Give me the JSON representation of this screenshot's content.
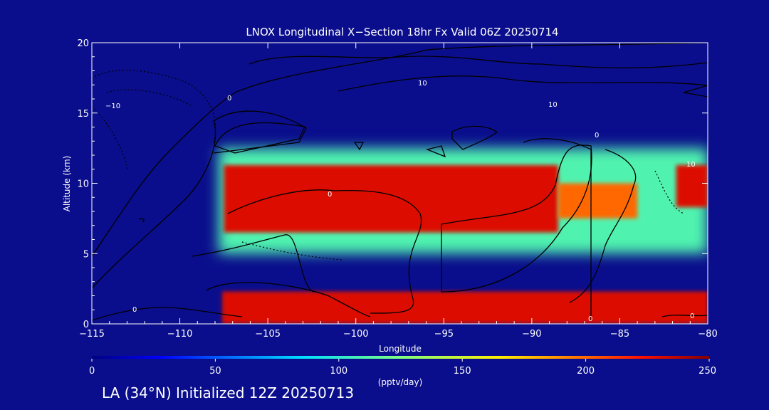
{
  "chart_data": {
    "type": "heatmap",
    "title": "LNOX Longitudinal X−Section 18hr  Fx Valid 06Z 20250714",
    "xlabel": "Longitude",
    "ylabel": "Altitude (km)",
    "xlim": [
      -115,
      -80
    ],
    "ylim": [
      0,
      20
    ],
    "x_ticks": [
      -115,
      -110,
      -105,
      -100,
      -95,
      -90,
      -85,
      -80
    ],
    "x_tick_labels": [
      "−115",
      "−110",
      "−105",
      "−100",
      "−95",
      "−90",
      "−85",
      "−80"
    ],
    "y_ticks": [
      0,
      5,
      10,
      15,
      20
    ],
    "y_tick_labels": [
      "0",
      "5",
      "10",
      "15",
      "20"
    ],
    "colorbar": {
      "min": 0,
      "max": 250,
      "ticks": [
        0,
        50,
        100,
        150,
        200,
        250
      ],
      "tick_labels": [
        "0",
        "50",
        "100",
        "150",
        "200",
        "250"
      ],
      "label": "(pptv/day)"
    },
    "field_regions": [
      {
        "name": "upper-outflow-halo",
        "lon": [
          -107.8,
          -80
        ],
        "alt": [
          5.0,
          12.5
        ],
        "value": 110
      },
      {
        "name": "upper-outflow-core-west",
        "lon": [
          -107.5,
          -88.5
        ],
        "alt": [
          6.5,
          11.3
        ],
        "value": 230
      },
      {
        "name": "upper-outflow-core-east",
        "lon": [
          -88.5,
          -84
        ],
        "alt": [
          7.5,
          10.0
        ],
        "value": 200
      },
      {
        "name": "eastern-cell-core",
        "lon": [
          -81.8,
          -80
        ],
        "alt": [
          8.3,
          11.3
        ],
        "value": 230
      },
      {
        "name": "surface-layer",
        "lon": [
          -107.6,
          -80
        ],
        "alt": [
          0.0,
          2.3
        ],
        "value": 230
      }
    ],
    "contour_labels": [
      "0",
      "0",
      "0",
      "0",
      "0",
      "−10",
      "10",
      "10",
      "10",
      "0"
    ]
  },
  "subtitle": "LA (34°N) Initialized 12Z 20250713"
}
